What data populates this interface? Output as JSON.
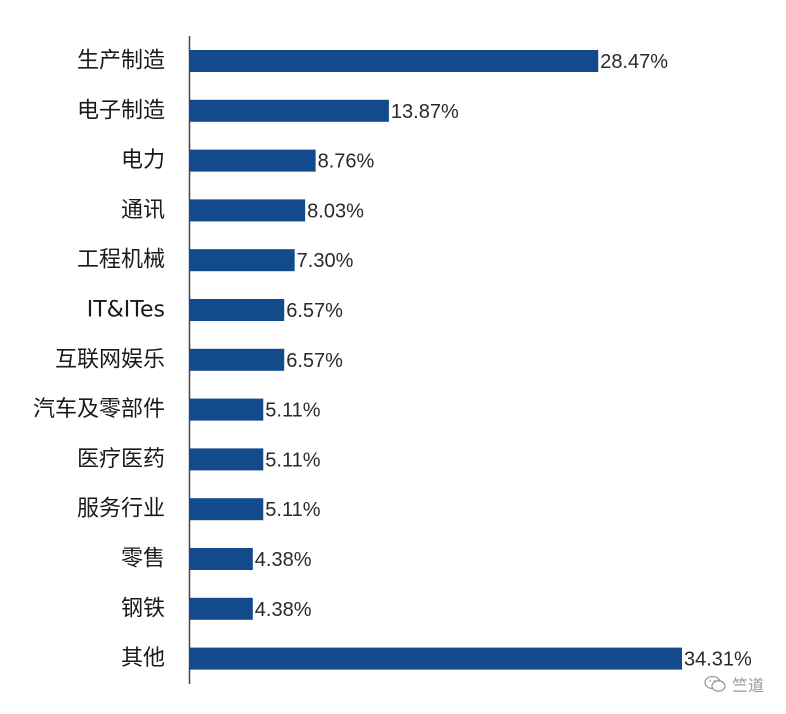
{
  "chart_data": {
    "type": "bar",
    "orientation": "horizontal",
    "categories": [
      "生产制造",
      "电子制造",
      "电力",
      "通讯",
      "工程机械",
      "IT&ITes",
      "互联网娱乐",
      "汽车及零部件",
      "医疗医药",
      "服务行业",
      "零售",
      "钢铁",
      "其他"
    ],
    "values": [
      28.47,
      13.87,
      8.76,
      8.03,
      7.3,
      6.57,
      6.57,
      5.11,
      5.11,
      5.11,
      4.38,
      4.38,
      34.31
    ],
    "value_labels": [
      "28.47%",
      "13.87%",
      "8.76%",
      "8.03%",
      "7.30%",
      "6.57%",
      "6.57%",
      "5.11%",
      "5.11%",
      "5.11%",
      "4.38%",
      "4.38%",
      "34.31%"
    ],
    "bar_color": "#124a8c",
    "grid": false,
    "xlim": [
      0,
      34.31
    ]
  },
  "watermark": {
    "icon": "wechat-icon",
    "text": "竺道"
  }
}
